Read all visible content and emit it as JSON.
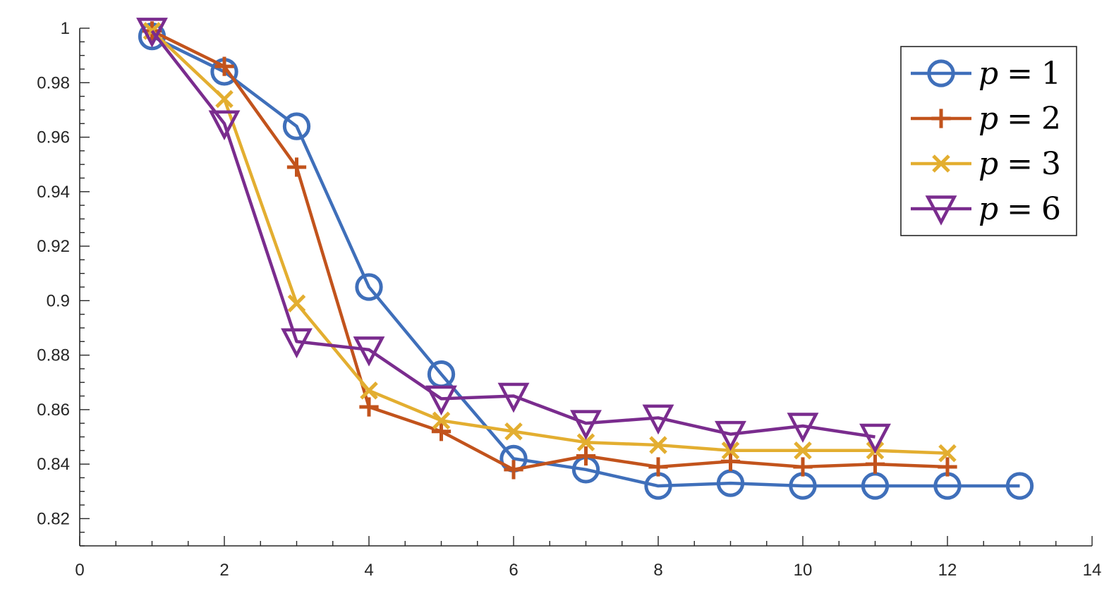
{
  "chart_data": {
    "type": "line",
    "title": "",
    "xlabel": "",
    "ylabel": "",
    "xlim": [
      0,
      14
    ],
    "ylim": [
      0.81,
      1.0
    ],
    "xticks": [
      0,
      2,
      4,
      6,
      8,
      10,
      12,
      14
    ],
    "xtick_labels": [
      "0",
      "2",
      "4",
      "6",
      "8",
      "10",
      "12",
      "14"
    ],
    "yticks": [
      0.82,
      0.84,
      0.86,
      0.88,
      0.9,
      0.92,
      0.94,
      0.96,
      0.98,
      1.0
    ],
    "ytick_labels": [
      "0.82",
      "0.84",
      "0.86",
      "0.88",
      "0.9",
      "0.92",
      "0.94",
      "0.96",
      "0.98",
      "1"
    ],
    "grid": false,
    "legend_position": "top-right",
    "series": [
      {
        "name": "p = 1",
        "legend_var": "p",
        "legend_op": "=",
        "legend_num": "1",
        "color": "#3f6fba",
        "marker": "circle",
        "x": [
          1,
          2,
          3,
          4,
          5,
          6,
          7,
          8,
          9,
          10,
          11,
          12,
          13
        ],
        "y": [
          0.997,
          0.984,
          0.964,
          0.905,
          0.873,
          0.842,
          0.838,
          0.832,
          0.833,
          0.832,
          0.832,
          0.832,
          0.832
        ]
      },
      {
        "name": "p = 2",
        "legend_var": "p",
        "legend_op": "=",
        "legend_num": "2",
        "color": "#c2531c",
        "marker": "plus",
        "x": [
          1,
          2,
          3,
          4,
          5,
          6,
          7,
          8,
          9,
          10,
          11,
          12
        ],
        "y": [
          0.999,
          0.986,
          0.949,
          0.861,
          0.852,
          0.838,
          0.843,
          0.839,
          0.841,
          0.839,
          0.84,
          0.839
        ]
      },
      {
        "name": "p = 3",
        "legend_var": "p",
        "legend_op": "=",
        "legend_num": "3",
        "color": "#e3ae30",
        "marker": "x",
        "x": [
          1,
          2,
          3,
          4,
          5,
          6,
          7,
          8,
          9,
          10,
          11,
          12
        ],
        "y": [
          0.999,
          0.974,
          0.899,
          0.867,
          0.856,
          0.852,
          0.848,
          0.847,
          0.845,
          0.845,
          0.845,
          0.844
        ]
      },
      {
        "name": "p = 6",
        "legend_var": "p",
        "legend_op": "=",
        "legend_num": "6",
        "color": "#7a2c8e",
        "marker": "triangle-down",
        "x": [
          1,
          2,
          3,
          4,
          5,
          6,
          7,
          8,
          9,
          10,
          11
        ],
        "y": [
          0.999,
          0.965,
          0.885,
          0.882,
          0.864,
          0.865,
          0.855,
          0.857,
          0.851,
          0.854,
          0.85
        ]
      }
    ]
  }
}
